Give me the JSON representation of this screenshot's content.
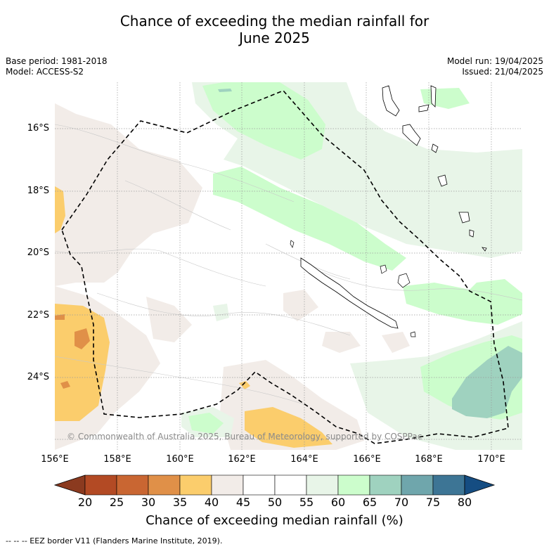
{
  "title_line1": "Chance of exceeding the median rainfall for",
  "title_line2": "June 2025",
  "meta_left": {
    "base_period": "Base period: 1981-2018",
    "model": "Model: ACCESS-S2"
  },
  "meta_right": {
    "model_run": "Model run: 19/04/2025",
    "issued": "Issued: 21/04/2025"
  },
  "lat_labels": [
    "16°S",
    "18°S",
    "20°S",
    "22°S",
    "24°S"
  ],
  "lon_labels": [
    "156°E",
    "158°E",
    "160°E",
    "162°E",
    "164°E",
    "166°E",
    "168°E",
    "170°E"
  ],
  "copyright": "© Commonwealth of Australia 2025, Bureau of Meteorology, supported by COSPPac",
  "colorbar": {
    "label": "Chance of exceeding median rainfall (%)",
    "ticks": [
      "20",
      "25",
      "30",
      "35",
      "40",
      "45",
      "50",
      "55",
      "60",
      "65",
      "70",
      "75",
      "80"
    ],
    "colors": [
      "#8b3a1f",
      "#b34a24",
      "#c96632",
      "#e09048",
      "#fbcd6c",
      "#f2ece8",
      "#ffffff",
      "#ffffff",
      "#e8f5e8",
      "#ccfdcc",
      "#9fd2bf",
      "#6fa6ac",
      "#3d7595",
      "#154d82"
    ]
  },
  "footer": "--  --  -- EEZ border V11 (Flanders Marine Institute, 2019)."
}
